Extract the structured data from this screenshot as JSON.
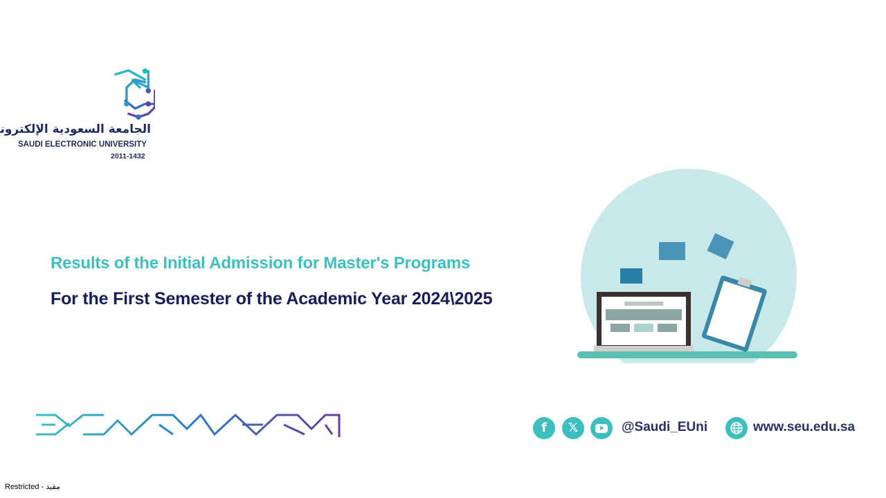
{
  "logo": {
    "arabic_name": "الجامعة السعودية الإلكترونية",
    "english_name": "SAUDI ELECTRONIC UNIVERSITY",
    "years": "2011-1432"
  },
  "slide": {
    "title": "Results of the Initial Admission for Master's Programs",
    "subtitle": "For the First Semester of the Academic Year 2024\\2025"
  },
  "footer": {
    "social_icons": [
      "facebook-icon",
      "x-icon",
      "youtube-icon"
    ],
    "handle": "@Saudi_EUni",
    "website_icon": "globe-icon",
    "website": "www.seu.edu.sa",
    "classification": "Restricted -  مقيد"
  },
  "colors": {
    "teal": "#3dbfc0",
    "navy": "#151d5a",
    "purple": "#6a3a9c",
    "circle": "#c9e8ea"
  }
}
